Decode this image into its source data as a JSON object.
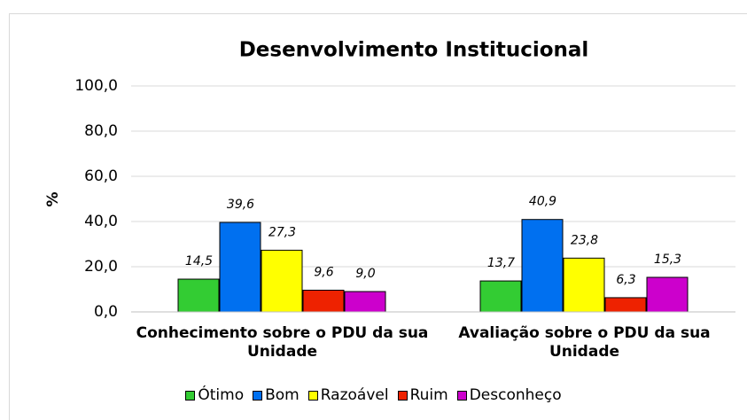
{
  "chart_data": {
    "type": "bar",
    "title": "Desenvolvimento Institucional",
    "y_label": "%",
    "categories": [
      "Conhecimento sobre o PDU da sua Unidade",
      "Avaliação sobre o PDU da sua Unidade"
    ],
    "series": [
      {
        "name": "Ótimo",
        "color": "#33cc33",
        "values": [
          14.5,
          13.7
        ],
        "value_labels": [
          "14,5",
          "13,7"
        ]
      },
      {
        "name": "Bom",
        "color": "#0070f0",
        "values": [
          39.6,
          40.9
        ],
        "value_labels": [
          "39,6",
          "40,9"
        ]
      },
      {
        "name": "Razoável",
        "color": "#ffff00",
        "values": [
          27.3,
          23.8
        ],
        "value_labels": [
          "27,3",
          "23,8"
        ]
      },
      {
        "name": "Ruim",
        "color": "#ee2200",
        "values": [
          9.6,
          6.3
        ],
        "value_labels": [
          "9,6",
          "6,3"
        ]
      },
      {
        "name": "Desconheço",
        "color": "#cc00cc",
        "values": [
          9.0,
          15.3
        ],
        "value_labels": [
          "9,0",
          "15,3"
        ]
      }
    ],
    "ylim": [
      0,
      100
    ],
    "yticks": [
      {
        "value": 0,
        "label": "0,0"
      },
      {
        "value": 20,
        "label": "20,0"
      },
      {
        "value": 40,
        "label": "40,0"
      },
      {
        "value": 60,
        "label": "60,0"
      },
      {
        "value": 80,
        "label": "80,0"
      },
      {
        "value": 100,
        "label": "100,0"
      }
    ],
    "grid": true,
    "legend": "bottom"
  }
}
